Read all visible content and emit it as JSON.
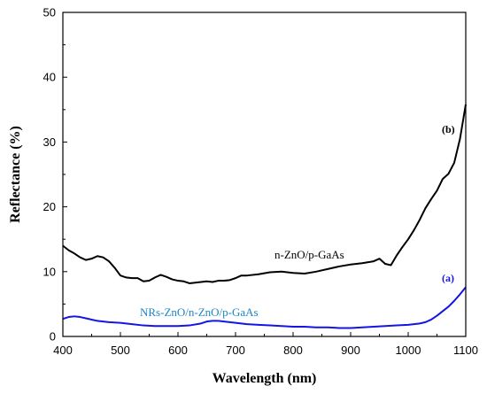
{
  "chart_data": {
    "type": "line",
    "title": "",
    "xlabel": "Wavelength (nm)",
    "ylabel": "Reflectance (%)",
    "xlim": [
      400,
      1100
    ],
    "ylim": [
      0,
      50
    ],
    "x_ticks": [
      400,
      500,
      600,
      700,
      800,
      900,
      1000,
      1100
    ],
    "y_ticks": [
      0,
      10,
      20,
      30,
      40,
      50
    ],
    "grid": false,
    "annotations": [
      {
        "text": "n-ZnO/p-GaAs",
        "series": 0
      },
      {
        "text": "(b)",
        "series": 0
      },
      {
        "text": "NRs-ZnO/n-ZnO/p-GaAs",
        "series": 1
      },
      {
        "text": "(a)",
        "series": 1
      }
    ],
    "series": [
      {
        "color": "#000000",
        "x": [
          400,
          410,
          420,
          430,
          440,
          450,
          460,
          470,
          480,
          490,
          500,
          510,
          520,
          530,
          540,
          550,
          560,
          570,
          580,
          590,
          600,
          610,
          620,
          630,
          640,
          650,
          660,
          670,
          680,
          690,
          700,
          710,
          720,
          740,
          760,
          780,
          800,
          820,
          840,
          860,
          880,
          900,
          920,
          940,
          950,
          960,
          970,
          980,
          990,
          1000,
          1010,
          1020,
          1030,
          1040,
          1050,
          1060,
          1070,
          1080,
          1090,
          1100
        ],
        "y": [
          14.0,
          13.3,
          12.8,
          12.2,
          11.8,
          12.0,
          12.4,
          12.2,
          11.6,
          10.6,
          9.4,
          9.1,
          9.0,
          9.0,
          8.5,
          8.6,
          9.1,
          9.5,
          9.2,
          8.8,
          8.6,
          8.5,
          8.2,
          8.3,
          8.4,
          8.5,
          8.4,
          8.6,
          8.6,
          8.7,
          9.0,
          9.4,
          9.4,
          9.6,
          9.9,
          10.0,
          9.8,
          9.7,
          10.0,
          10.4,
          10.8,
          11.1,
          11.3,
          11.6,
          12.0,
          11.2,
          11.0,
          12.5,
          13.8,
          15.0,
          16.4,
          18.0,
          19.8,
          21.2,
          22.5,
          24.3,
          25.1,
          26.8,
          30.5,
          35.8
        ]
      },
      {
        "color": "#1414e6",
        "x": [
          400,
          410,
          420,
          430,
          440,
          450,
          460,
          480,
          500,
          520,
          540,
          560,
          580,
          600,
          620,
          640,
          650,
          660,
          670,
          680,
          700,
          720,
          740,
          760,
          780,
          800,
          820,
          840,
          860,
          880,
          900,
          920,
          940,
          960,
          980,
          1000,
          1010,
          1020,
          1030,
          1040,
          1050,
          1060,
          1070,
          1080,
          1090,
          1100
        ],
        "y": [
          2.7,
          3.0,
          3.1,
          3.0,
          2.8,
          2.6,
          2.4,
          2.2,
          2.1,
          1.9,
          1.7,
          1.6,
          1.6,
          1.6,
          1.7,
          2.0,
          2.3,
          2.4,
          2.4,
          2.3,
          2.1,
          1.9,
          1.8,
          1.7,
          1.6,
          1.5,
          1.5,
          1.4,
          1.4,
          1.3,
          1.3,
          1.4,
          1.5,
          1.6,
          1.7,
          1.8,
          1.9,
          2.0,
          2.2,
          2.6,
          3.2,
          3.9,
          4.6,
          5.5,
          6.5,
          7.6
        ]
      }
    ]
  },
  "colors": {
    "label_n_zno": "#000000",
    "label_nrs": "#1a86c8",
    "label_a": "#1414e6"
  }
}
